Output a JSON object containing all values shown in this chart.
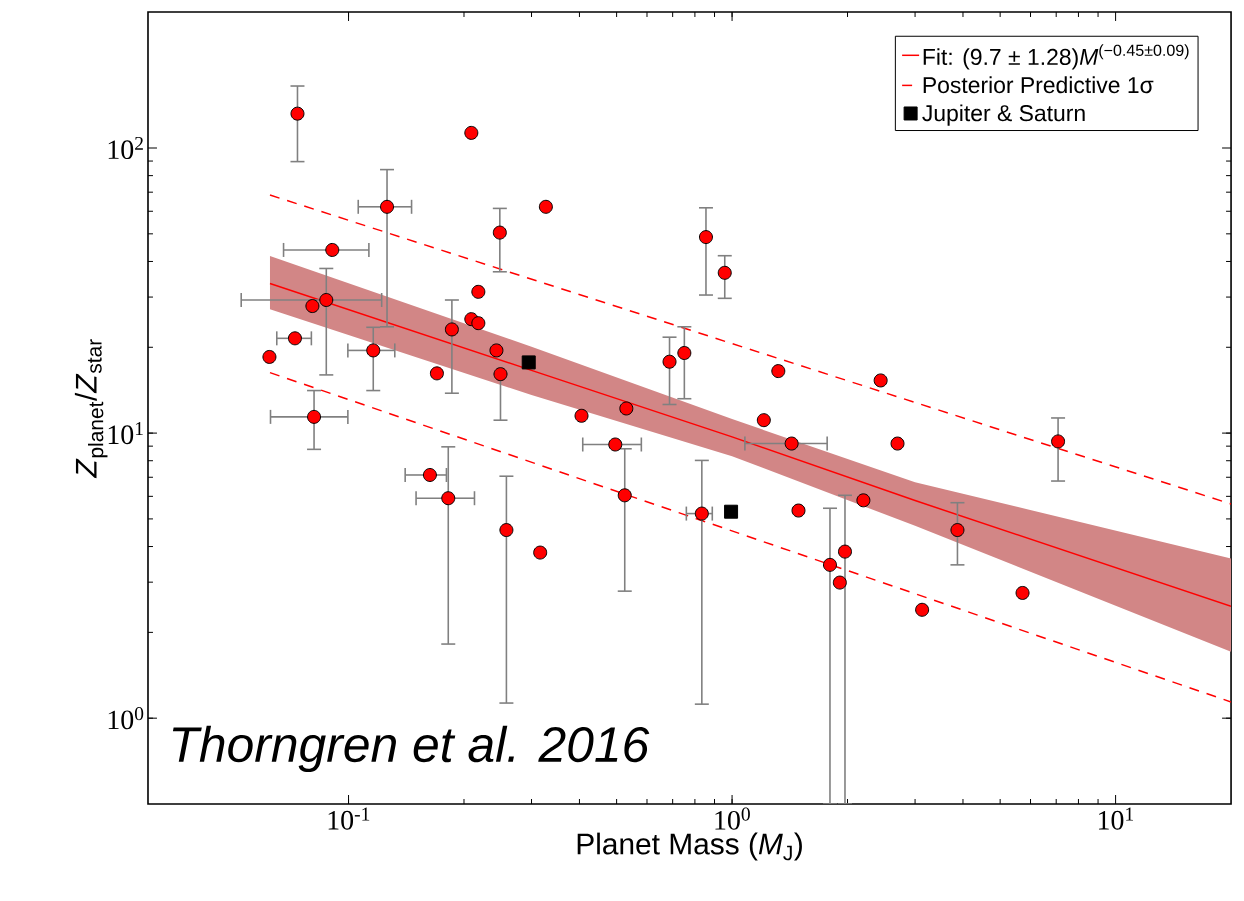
{
  "chart_data": {
    "type": "scatter",
    "xlabel": "Planet Mass (*M*$_{J}$)",
    "ylabel": "*Z*$_{planet}$/*Z*$_{star}$",
    "annotations": [
      "Thorngren et al. 2016"
    ],
    "log": "xy",
    "grid": false,
    "legend": "top right",
    "xlim": [
      0.03,
      20
    ],
    "ylim": [
      0.5,
      300
    ],
    "xticks": [
      {
        "value": 0.1,
        "label": "10$^{-1}$"
      },
      {
        "value": 1,
        "label": "10$^{0}$"
      },
      {
        "value": 10,
        "label": "10$^{1}$"
      }
    ],
    "yticks": [
      {
        "value": 1,
        "label": "10$^{0}$"
      },
      {
        "value": 10,
        "label": "10$^{1}$"
      },
      {
        "value": 100,
        "label": "10$^{2}$"
      }
    ],
    "series": [
      {
        "type": "line",
        "name": "Fit: (9.7 ± 1.28)*M*$^{(−0.45±0.09)}$",
        "color": "#ff0000",
        "line_style": "solid",
        "marker": "none",
        "x": [
          0.0624,
          0.3,
          1,
          3,
          20
        ],
        "values": [
          33.5,
          16.6,
          9.7,
          5.8,
          2.47
        ],
        "lower": [
          27.2,
          13.6,
          8.3,
          4.73,
          1.71
        ],
        "upper": [
          41.8,
          20.1,
          11.2,
          6.73,
          3.63
        ]
      },
      {
        "type": "line",
        "name": "Posterior Predictive 1σ",
        "color": "#ff0000",
        "line_style": "dashed",
        "marker": "none",
        "x": [
          0.0624,
          20
        ],
        "values": [
          68.4,
          5.64
        ]
      },
      {
        "type": "line",
        "color": "#ff0000",
        "line_style": "dashed",
        "marker": "none",
        "x": [
          0.0624,
          20
        ],
        "values": [
          16.3,
          1.14
        ]
      },
      {
        "color": "#ff0000",
        "marker": "circle",
        "x": [
          0.0736,
          0.209,
          0.126,
          0.327,
          0.248,
          0.0907,
          0.0875,
          0.0805,
          0.218,
          0.209,
          0.218,
          0.186,
          0.0725,
          0.0622,
          0.116,
          0.17,
          0.243,
          0.249,
          0.0813,
          0.163,
          0.182,
          0.258,
          0.316,
          0.855,
          0.957,
          0.687,
          0.751,
          1.32,
          2.44,
          0.405,
          0.53,
          1.21,
          0.496,
          1.43,
          2.7,
          7.08,
          0.525,
          0.834,
          1.49,
          2.2,
          1.8,
          1.97,
          1.91,
          3.87,
          3.13,
          5.72
        ],
        "values": [
          132,
          113,
          62.2,
          62.2,
          50.5,
          43.9,
          29.3,
          27.9,
          31.3,
          25.1,
          24.3,
          23.1,
          21.5,
          18.5,
          19.5,
          16.2,
          19.5,
          16.1,
          11.4,
          7.13,
          5.91,
          4.57,
          3.81,
          48.7,
          36.5,
          17.8,
          19.1,
          16.5,
          15.3,
          11.5,
          12.2,
          11.1,
          9.12,
          9.19,
          9.19,
          9.35,
          6.05,
          5.22,
          5.35,
          5.81,
          3.45,
          3.84,
          2.99,
          4.57,
          2.4,
          2.75
        ],
        "errors": [
          [
            89.6,
            165
          ],
          null,
          [
            23.6,
            84
          ],
          null,
          [
            36.8,
            61.4
          ],
          null,
          [
            16,
            37.8
          ],
          null,
          null,
          null,
          null,
          [
            13.8,
            29.3
          ],
          null,
          null,
          [
            14.1,
            23.5
          ],
          null,
          null,
          [
            11.1,
            16.1
          ],
          [
            8.77,
            14.1
          ],
          null,
          [
            1.82,
            8.95
          ],
          [
            1.13,
            7.06
          ],
          null,
          [
            30.5,
            61.7
          ],
          [
            29.7,
            41.9
          ],
          [
            12.6,
            21.7
          ],
          [
            13.2,
            23.6
          ],
          null,
          null,
          null,
          null,
          null,
          null,
          null,
          null,
          [
            6.79,
            11.3
          ],
          [
            2.79,
            8.81
          ],
          [
            1.12,
            8.02
          ],
          null,
          null,
          [
            0.5,
            5.45
          ],
          [
            0.5,
            6.05
          ],
          null,
          [
            3.45,
            5.7
          ],
          null,
          null
        ],
        "xerrors": [
          null,
          null,
          [
            0.106,
            0.146
          ],
          null,
          null,
          [
            0.0677,
            0.113
          ],
          [
            0.0525,
            0.122
          ],
          null,
          null,
          null,
          null,
          null,
          [
            0.065,
            0.08
          ],
          null,
          [
            0.0996,
            0.132
          ],
          null,
          null,
          null,
          [
            0.0626,
            0.0996
          ],
          [
            0.1405,
            0.18
          ],
          [
            0.15,
            0.213
          ],
          null,
          null,
          null,
          null,
          null,
          null,
          null,
          null,
          null,
          null,
          null,
          [
            0.408,
            0.58
          ],
          [
            1.08,
            1.77
          ],
          null,
          null,
          null,
          [
            0.76,
            0.888
          ],
          null,
          null,
          null,
          null,
          null,
          null,
          null,
          null
        ]
      },
      {
        "name": "Jupiter & Saturn",
        "color": "#000000",
        "marker": "square",
        "x": [
          0.295,
          0.994
        ],
        "values": [
          17.7,
          5.3
        ]
      }
    ]
  }
}
